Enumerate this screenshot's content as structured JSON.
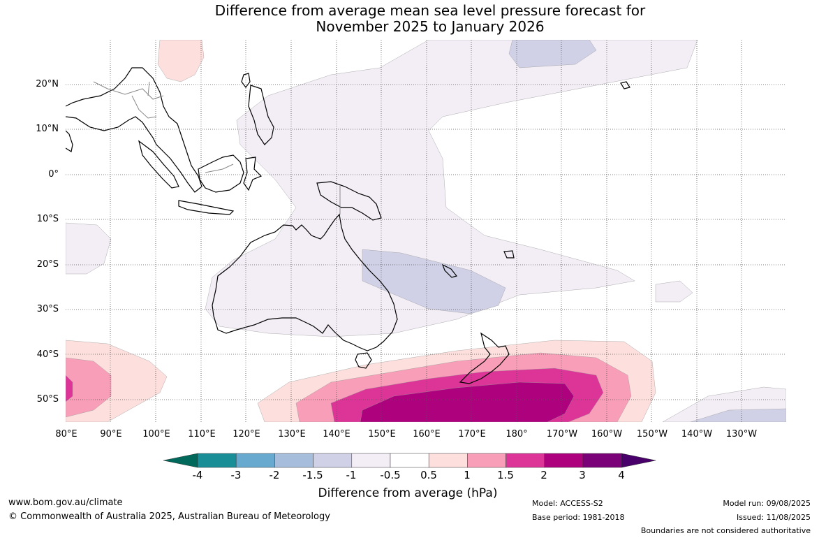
{
  "title": {
    "line1": "Difference from average mean sea level pressure forecast for",
    "line2": "November 2025 to January 2026"
  },
  "map": {
    "lat_labels": [
      "20°N",
      "10°N",
      "0°",
      "10°S",
      "20°S",
      "30°S",
      "40°S",
      "50°S"
    ],
    "lon_labels": [
      "80°E",
      "90°E",
      "100°E",
      "110°E",
      "120°E",
      "130°E",
      "140°E",
      "150°E",
      "160°E",
      "170°E",
      "180°",
      "170°W",
      "160°W",
      "150°W",
      "140°W",
      "130°W"
    ],
    "anomaly_colors": {
      "n1_to_n05": "#f3edf6",
      "n15_to_n1": "#d0d1e6",
      "p05_to_p1": "#fde0dd",
      "p1_to_p15": "#f89eb8",
      "p15_to_p2": "#dd3497",
      "p2_to_p3": "#ae017e"
    },
    "features": [
      "australia-landmass",
      "new-zealand-landmass",
      "southeast-asia-coastline",
      "papua-new-guinea-landmass",
      "country-boundaries",
      "graticule-grid"
    ]
  },
  "colorbar": {
    "ticks": [
      "-4",
      "-3",
      "-2",
      "-1.5",
      "-1",
      "-0.5",
      "0.5",
      "1",
      "1.5",
      "2",
      "3",
      "4"
    ],
    "colors": [
      "#00695c",
      "#1a8e96",
      "#67a9cf",
      "#a6bddb",
      "#d0d1e6",
      "#f3edf6",
      "#ffffff",
      "#fde0dd",
      "#f89eb8",
      "#dd3497",
      "#ae017e",
      "#7a0177",
      "#49006a"
    ],
    "label": "Difference from average (hPa)"
  },
  "footer": {
    "url": "www.bom.gov.au/climate",
    "copyright": "© Commonwealth of Australia 2025, Australian Bureau of Meteorology",
    "model": "Model: ACCESS-S2",
    "base_period": "Base period: 1981-2018",
    "model_run": "Model run: 09/08/2025",
    "issued": "Issued: 11/08/2025",
    "disclaimer": "Boundaries are not considered authoritative"
  }
}
